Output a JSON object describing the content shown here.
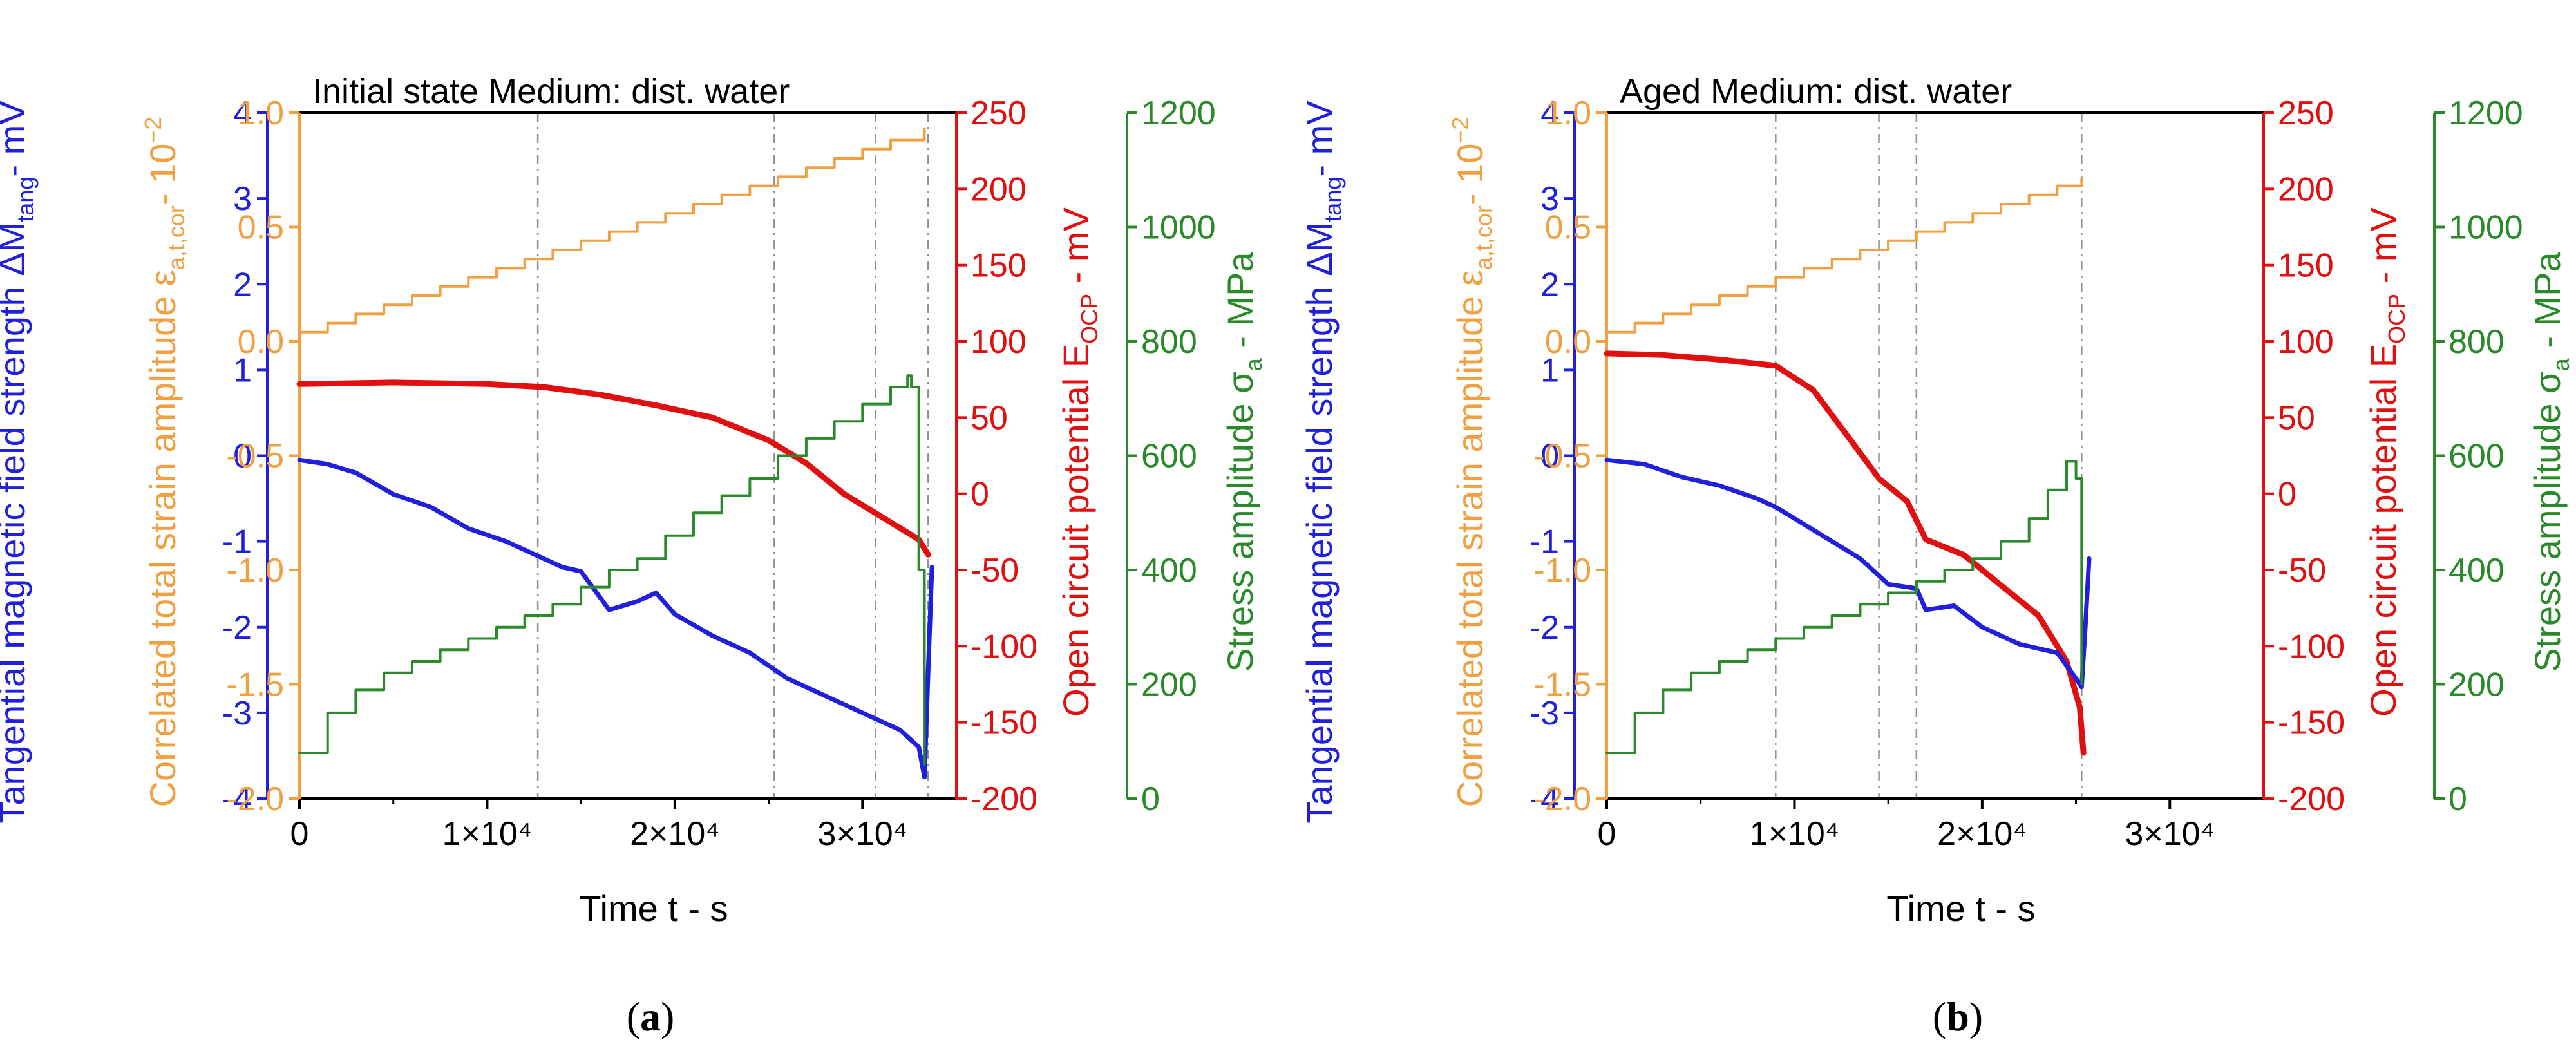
{
  "figure": {
    "colors": {
      "magnetic": "#1f1fdc",
      "strain": "#f0a040",
      "potential": "#e01010",
      "stress": "#2a8a2a",
      "frame": "#000000",
      "grid": "#909090"
    },
    "axis_labels": {
      "x": "Time t - s",
      "magnetic": {
        "pre": "Tangential magnetic field strength ΔM",
        "sub": "tang",
        "post": "- mV"
      },
      "strain": {
        "pre": "Correlated total strain amplitude ε",
        "sub": "a,t,cor",
        "post": "- 10",
        "sup": "−2"
      },
      "potential": {
        "pre": "Open circuit potential E",
        "sub": "OCP",
        "post": " - mV"
      },
      "stress": {
        "pre": "Stress amplitude σ",
        "sub": "a",
        "post": " - MPa"
      }
    },
    "ticks": {
      "x": [
        "0",
        "1×10⁴",
        "2×10⁴",
        "3×10⁴"
      ],
      "magnetic": [
        "-4",
        "-3",
        "-2",
        "-1",
        "0",
        "1",
        "2",
        "3",
        "4"
      ],
      "strain": [
        "-2.0",
        "-1.5",
        "-1.0",
        "-0.5",
        "0.0",
        "0.5",
        "1.0"
      ],
      "potential": [
        "-200",
        "-150",
        "-100",
        "-50",
        "0",
        "50",
        "100",
        "150",
        "200",
        "250"
      ],
      "stress": [
        "0",
        "200",
        "400",
        "600",
        "800",
        "1000",
        "1200"
      ]
    },
    "captions": [
      {
        "open": "(",
        "letter": "a",
        "close": ")"
      },
      {
        "open": "(",
        "letter": "b",
        "close": ")"
      }
    ]
  },
  "chart_data": [
    {
      "type": "line",
      "title": "Initial state  Medium: dist. water",
      "xlabel": "Time t - s",
      "xlim": [
        0,
        35000
      ],
      "vlines": [
        12700,
        25300,
        30700,
        33500
      ],
      "axes": {
        "magnetic": {
          "label": "Tangential magnetic field strength ΔMtang - mV",
          "ylim": [
            -4,
            4
          ]
        },
        "strain": {
          "label": "Correlated total strain amplitude εa,t,cor - 10−2",
          "ylim": [
            -2.0,
            1.0
          ]
        },
        "potential": {
          "label": "Open circuit potential EOCP - mV",
          "ylim": [
            -200,
            250
          ]
        },
        "stress": {
          "label": "Stress amplitude σa - MPa",
          "ylim": [
            0,
            1200
          ]
        }
      },
      "series": [
        {
          "name": "Correlated total strain amplitude",
          "axis": "strain",
          "step": true,
          "x": [
            0,
            1500,
            3000,
            4500,
            6000,
            7500,
            9000,
            10500,
            12000,
            13500,
            15000,
            16500,
            18000,
            19500,
            21000,
            22500,
            24000,
            25500,
            27000,
            28500,
            30000,
            31500,
            33300
          ],
          "y": [
            0.04,
            0.08,
            0.12,
            0.16,
            0.2,
            0.24,
            0.28,
            0.32,
            0.36,
            0.4,
            0.44,
            0.48,
            0.52,
            0.56,
            0.6,
            0.64,
            0.68,
            0.72,
            0.76,
            0.8,
            0.84,
            0.88,
            0.93
          ]
        },
        {
          "name": "Open circuit potential",
          "axis": "potential",
          "x": [
            0,
            5000,
            10000,
            13000,
            16000,
            19000,
            22000,
            25000,
            27000,
            29000,
            31000,
            33000,
            33500
          ],
          "y": [
            72,
            73,
            72,
            70,
            65,
            58,
            50,
            35,
            20,
            0,
            -15,
            -30,
            -40
          ]
        },
        {
          "name": "Tangential magnetic field strength",
          "axis": "magnetic",
          "x": [
            0,
            1500,
            3000,
            5000,
            7000,
            9000,
            11000,
            13000,
            14000,
            15000,
            16500,
            18000,
            19000,
            20000,
            22000,
            24000,
            26000,
            28000,
            30000,
            32000,
            33000,
            33300,
            33500,
            33700
          ],
          "y": [
            -0.05,
            -0.1,
            -0.2,
            -0.45,
            -0.6,
            -0.85,
            -1.0,
            -1.2,
            -1.3,
            -1.35,
            -1.8,
            -1.7,
            -1.6,
            -1.85,
            -2.1,
            -2.3,
            -2.6,
            -2.8,
            -3.0,
            -3.2,
            -3.4,
            -3.75,
            -2.5,
            -1.3
          ]
        },
        {
          "name": "Stress amplitude",
          "axis": "stress",
          "step": true,
          "x": [
            0,
            1500,
            3000,
            4500,
            6000,
            7500,
            9000,
            10500,
            12000,
            13500,
            15000,
            16500,
            18000,
            19500,
            21000,
            22500,
            24000,
            25500,
            27000,
            28500,
            30000,
            31500,
            32400,
            32600,
            33000,
            33300
          ],
          "y": [
            80,
            150,
            190,
            220,
            240,
            260,
            280,
            300,
            320,
            340,
            370,
            400,
            420,
            460,
            500,
            530,
            560,
            600,
            630,
            660,
            690,
            720,
            740,
            720,
            400,
            60
          ]
        }
      ]
    },
    {
      "type": "line",
      "title": "Aged Medium: dist. water",
      "xlabel": "Time t - s",
      "xlim": [
        0,
        35000
      ],
      "vlines": [
        9000,
        14500,
        16500,
        25300
      ],
      "axes": {
        "magnetic": {
          "label": "Tangential magnetic field strength ΔMtang - mV",
          "ylim": [
            -4,
            4
          ]
        },
        "strain": {
          "label": "Correlated total strain amplitude εa,t,cor - 10−2",
          "ylim": [
            -2.0,
            1.0
          ]
        },
        "potential": {
          "label": "Open circuit potential EOCP - mV",
          "ylim": [
            -200,
            250
          ]
        },
        "stress": {
          "label": "Stress amplitude σa - MPa",
          "ylim": [
            0,
            1200
          ]
        }
      },
      "series": [
        {
          "name": "Correlated total strain amplitude",
          "axis": "strain",
          "step": true,
          "x": [
            0,
            1500,
            3000,
            4500,
            6000,
            7500,
            9000,
            10500,
            12000,
            13500,
            15000,
            16500,
            18000,
            19500,
            21000,
            22500,
            24000,
            25300
          ],
          "y": [
            0.04,
            0.08,
            0.12,
            0.16,
            0.2,
            0.24,
            0.28,
            0.32,
            0.36,
            0.4,
            0.44,
            0.48,
            0.52,
            0.56,
            0.6,
            0.64,
            0.68,
            0.71
          ]
        },
        {
          "name": "Open circuit potential",
          "axis": "potential",
          "x": [
            0,
            3000,
            6000,
            9000,
            11000,
            13000,
            14500,
            16000,
            17000,
            19000,
            21000,
            23000,
            24500,
            25200,
            25400
          ],
          "y": [
            92,
            91,
            88,
            84,
            68,
            35,
            10,
            -5,
            -30,
            -40,
            -60,
            -80,
            -110,
            -140,
            -170
          ]
        },
        {
          "name": "Tangential magnetic field strength",
          "axis": "magnetic",
          "x": [
            0,
            2000,
            4000,
            6000,
            8000,
            9000,
            10500,
            12000,
            13500,
            14500,
            15000,
            16500,
            17000,
            18500,
            20000,
            22000,
            24000,
            25000,
            25300,
            25500,
            25700
          ],
          "y": [
            -0.05,
            -0.1,
            -0.25,
            -0.35,
            -0.5,
            -0.6,
            -0.8,
            -1.0,
            -1.2,
            -1.4,
            -1.5,
            -1.55,
            -1.8,
            -1.75,
            -2.0,
            -2.2,
            -2.3,
            -2.6,
            -2.7,
            -2.0,
            -1.2
          ]
        },
        {
          "name": "Stress amplitude",
          "axis": "stress",
          "step": true,
          "x": [
            0,
            1500,
            3000,
            4500,
            6000,
            7500,
            9000,
            10500,
            12000,
            13500,
            15000,
            16500,
            18000,
            19500,
            21000,
            22500,
            23500,
            24500,
            25000,
            25300
          ],
          "y": [
            80,
            150,
            190,
            220,
            240,
            260,
            280,
            300,
            320,
            340,
            360,
            380,
            400,
            420,
            450,
            490,
            540,
            590,
            560,
            200
          ]
        }
      ]
    }
  ]
}
